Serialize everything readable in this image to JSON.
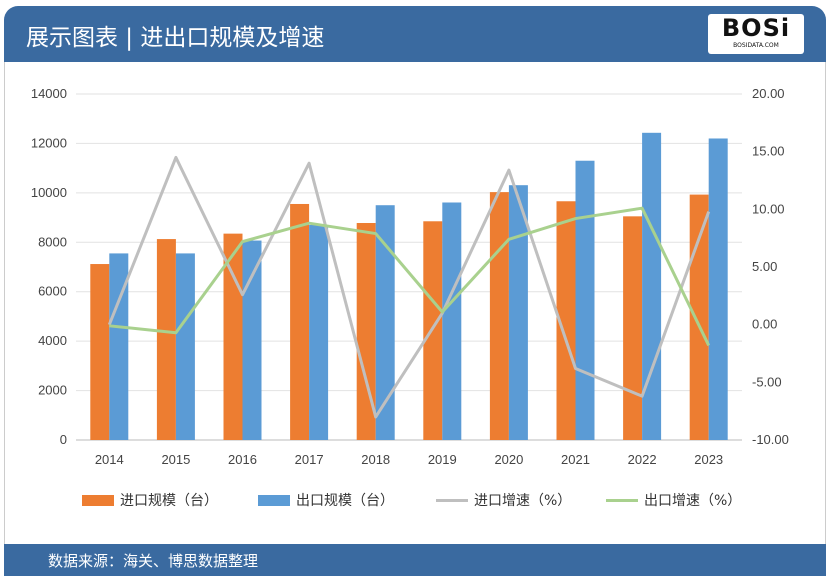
{
  "header": {
    "title": "展示图表 | 进出口规模及增速",
    "logo_text": "BOSi",
    "logo_sub": "BOSIDATA.COM"
  },
  "footer": {
    "source": "数据来源：海关、博思数据整理"
  },
  "chart_data": {
    "type": "bar+line",
    "categories": [
      "2014",
      "2015",
      "2016",
      "2017",
      "2018",
      "2019",
      "2020",
      "2021",
      "2022",
      "2023"
    ],
    "y_left": {
      "range": [
        0,
        14000
      ],
      "ticks": [
        "0",
        "2000",
        "4000",
        "6000",
        "8000",
        "10000",
        "12000",
        "14000"
      ]
    },
    "y_right": {
      "range": [
        -10,
        20
      ],
      "ticks": [
        "-10.00",
        "-5.00",
        "0.00",
        "5.00",
        "10.00",
        "15.00",
        "20.00"
      ]
    },
    "grid": true,
    "legend_position": "bottom",
    "series": [
      {
        "name": "进口规模（台）",
        "type": "bar",
        "axis": "left",
        "color": "#ed7d31",
        "values": [
          7120,
          8130,
          8350,
          9550,
          8780,
          8850,
          10030,
          9660,
          9050,
          9930
        ]
      },
      {
        "name": "出口规模（台）",
        "type": "bar",
        "axis": "left",
        "color": "#5b9bd5",
        "values": [
          7550,
          7550,
          8070,
          8700,
          9500,
          9610,
          10310,
          11300,
          12430,
          12200
        ]
      },
      {
        "name": "进口增速（%）",
        "type": "line",
        "axis": "right",
        "color": "#bfbfbf",
        "values": [
          0.0,
          14.5,
          2.6,
          14.0,
          -8.0,
          1.0,
          13.4,
          -3.8,
          -6.2,
          9.8
        ]
      },
      {
        "name": "出口增速（%）",
        "type": "line",
        "axis": "right",
        "color": "#a9d18e",
        "values": [
          -0.1,
          -0.7,
          7.2,
          8.8,
          7.9,
          1.1,
          7.4,
          9.2,
          10.1,
          -1.8
        ]
      }
    ]
  }
}
